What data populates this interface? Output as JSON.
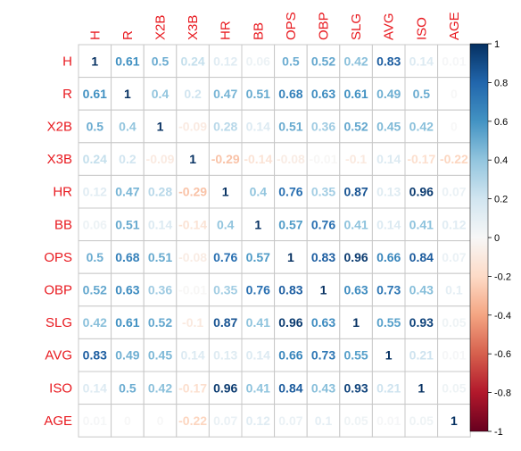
{
  "chart_data": {
    "type": "heatmap",
    "title": "",
    "variables": [
      "H",
      "R",
      "X2B",
      "X3B",
      "HR",
      "BB",
      "OPS",
      "OBP",
      "SLG",
      "AVG",
      "ISO",
      "AGE"
    ],
    "matrix": [
      [
        1,
        0.61,
        0.5,
        0.24,
        0.12,
        0.06,
        0.5,
        0.52,
        0.42,
        0.83,
        0.14,
        0.01
      ],
      [
        0.61,
        1,
        0.4,
        0.2,
        0.47,
        0.51,
        0.68,
        0.63,
        0.61,
        0.49,
        0.5,
        0
      ],
      [
        0.5,
        0.4,
        1,
        -0.09,
        0.28,
        0.14,
        0.51,
        0.36,
        0.52,
        0.45,
        0.42,
        0
      ],
      [
        0.24,
        0.2,
        -0.09,
        1,
        -0.29,
        -0.14,
        -0.08,
        -0.01,
        -0.1,
        0.14,
        -0.17,
        -0.22
      ],
      [
        0.12,
        0.47,
        0.28,
        -0.29,
        1,
        0.4,
        0.76,
        0.35,
        0.87,
        0.13,
        0.96,
        0.07
      ],
      [
        0.06,
        0.51,
        0.14,
        -0.14,
        0.4,
        1,
        0.57,
        0.76,
        0.41,
        0.14,
        0.41,
        0.12
      ],
      [
        0.5,
        0.68,
        0.51,
        -0.08,
        0.76,
        0.57,
        1,
        0.83,
        0.96,
        0.66,
        0.84,
        0.07
      ],
      [
        0.52,
        0.63,
        0.36,
        -0.01,
        0.35,
        0.76,
        0.83,
        1,
        0.63,
        0.73,
        0.43,
        0.1
      ],
      [
        0.42,
        0.61,
        0.52,
        -0.1,
        0.87,
        0.41,
        0.96,
        0.63,
        1,
        0.55,
        0.93,
        0.05
      ],
      [
        0.83,
        0.49,
        0.45,
        0.14,
        0.13,
        0.14,
        0.66,
        0.73,
        0.55,
        1,
        0.21,
        0.01
      ],
      [
        0.14,
        0.5,
        0.42,
        -0.17,
        0.96,
        0.41,
        0.84,
        0.43,
        0.93,
        0.21,
        1,
        0.05
      ],
      [
        0.01,
        0,
        0,
        -0.22,
        0.07,
        0.12,
        0.07,
        0.1,
        0.05,
        0.01,
        0.05,
        1
      ]
    ],
    "colorbar": {
      "range": [
        -1,
        1
      ],
      "ticks": [
        1,
        0.8,
        0.6,
        0.4,
        0.2,
        0,
        -0.2,
        -0.4,
        -0.6,
        -0.8,
        -1
      ],
      "colors": {
        "strong_negative": "#67001f",
        "negative": "#d6604d",
        "neutral": "#f7f7f7",
        "positive": "#4393c3",
        "strong_positive": "#053061"
      }
    },
    "label_color": "#e8191f",
    "grid": true
  }
}
